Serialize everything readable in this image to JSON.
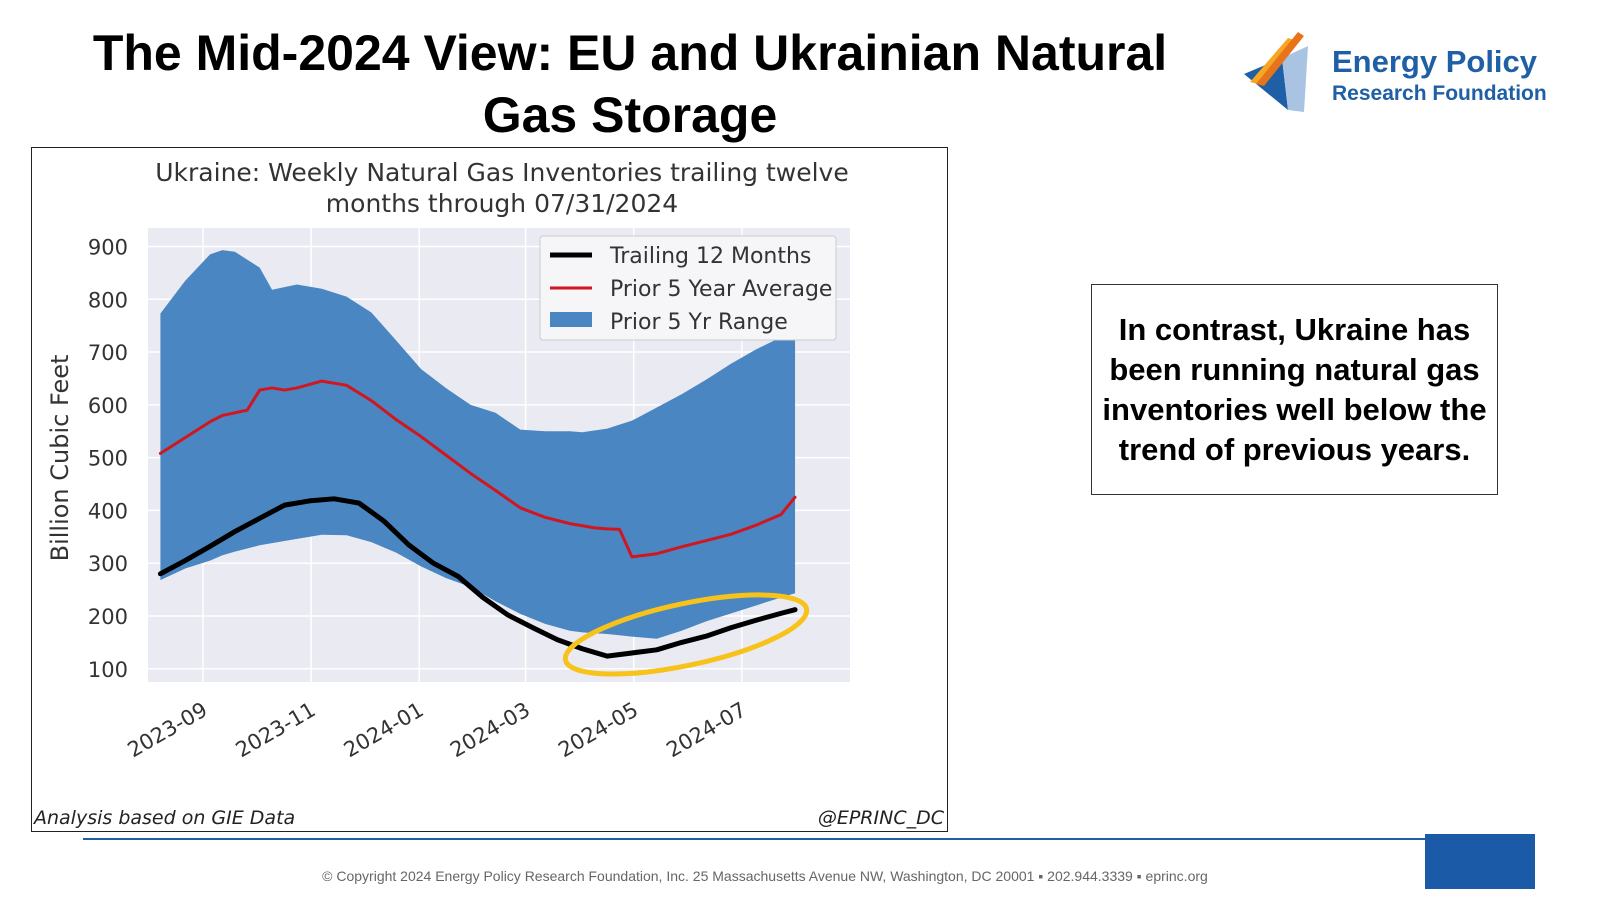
{
  "slide": {
    "title": "The Mid-2024 View: EU and Ukrainian Natural Gas Storage",
    "logo_line1": "Energy Policy",
    "logo_line2": "Research Foundation",
    "callout": "In contrast, Ukraine has been running natural gas inventories well below the trend of previous years.",
    "footer": "© Copyright 2024 Energy Policy Research Foundation, Inc. 25 Massachusetts Avenue NW, Washington, DC 20001 ▪ 202.944.3339 ▪ eprinc.org",
    "note_left": "Analysis based on GIE Data",
    "note_right": "@EPRINC_DC"
  },
  "colors": {
    "range_fill": "#4a86c2",
    "avg_line": "#d0161e",
    "trailing_line": "#000000",
    "highlight": "#f7c21a",
    "plot_bg": "#eaeaf2",
    "brand_blue": "#1f5fa6"
  },
  "chart_data": {
    "type": "area",
    "title": "Ukraine: Weekly Natural Gas Inventories trailing twelve months through 07/31/2024",
    "title_lines": [
      "Ukraine: Weekly Natural Gas Inventories trailing twelve",
      "months through 07/31/2024"
    ],
    "xlabel": "",
    "ylabel": "Billion Cubic Feet",
    "x_axis": "date",
    "x_ticks": [
      "2023-09",
      "2023-11",
      "2024-01",
      "2024-03",
      "2024-05",
      "2024-07"
    ],
    "xlim": [
      "2023-08-01",
      "2024-08-31"
    ],
    "y_ticks": [
      100,
      200,
      300,
      400,
      500,
      600,
      700,
      800,
      900
    ],
    "ylim": [
      75,
      935
    ],
    "grid": true,
    "legend_position": "top-right",
    "legend": [
      "Trailing 12 Months",
      "Prior 5 Year Average",
      "Prior 5 Yr Range"
    ],
    "series": [
      {
        "name": "Prior 5 Yr Range",
        "kind": "band",
        "x": [
          "2023-08-08",
          "2023-08-22",
          "2023-09-05",
          "2023-09-12",
          "2023-09-19",
          "2023-10-03",
          "2023-10-10",
          "2023-10-24",
          "2023-11-07",
          "2023-11-21",
          "2023-12-05",
          "2023-12-19",
          "2024-01-02",
          "2024-01-16",
          "2024-01-30",
          "2024-02-13",
          "2024-02-27",
          "2024-03-12",
          "2024-03-26",
          "2024-04-02",
          "2024-04-16",
          "2024-04-30",
          "2024-05-14",
          "2024-05-28",
          "2024-06-11",
          "2024-06-25",
          "2024-07-09",
          "2024-07-23",
          "2024-07-31"
        ],
        "upper": [
          773,
          835,
          885,
          893,
          890,
          860,
          818,
          828,
          820,
          805,
          775,
          722,
          668,
          632,
          600,
          585,
          553,
          550,
          550,
          548,
          555,
          570,
          595,
          620,
          648,
          678,
          705,
          728,
          740
        ],
        "lower": [
          268,
          290,
          305,
          315,
          322,
          334,
          338,
          346,
          354,
          353,
          340,
          320,
          294,
          272,
          255,
          228,
          204,
          185,
          172,
          169,
          166,
          161,
          157,
          172,
          190,
          205,
          220,
          235,
          243
        ]
      },
      {
        "name": "Prior 5 Year Average",
        "kind": "line",
        "x": [
          "2023-08-08",
          "2023-08-22",
          "2023-09-05",
          "2023-09-12",
          "2023-09-26",
          "2023-10-03",
          "2023-10-10",
          "2023-10-17",
          "2023-10-24",
          "2023-11-07",
          "2023-11-21",
          "2023-12-05",
          "2023-12-19",
          "2024-01-02",
          "2024-01-16",
          "2024-01-30",
          "2024-02-13",
          "2024-02-27",
          "2024-03-12",
          "2024-03-26",
          "2024-04-09",
          "2024-04-16",
          "2024-04-23",
          "2024-04-30",
          "2024-05-14",
          "2024-05-28",
          "2024-06-11",
          "2024-06-25",
          "2024-07-09",
          "2024-07-23",
          "2024-07-31"
        ],
        "values": [
          508,
          538,
          568,
          580,
          590,
          628,
          632,
          628,
          632,
          645,
          637,
          608,
          572,
          540,
          505,
          470,
          438,
          405,
          387,
          375,
          367,
          365,
          364,
          312,
          318,
          331,
          343,
          355,
          372,
          392,
          425
        ]
      },
      {
        "name": "Trailing 12 Months",
        "kind": "line",
        "x": [
          "2023-08-08",
          "2023-08-22",
          "2023-09-05",
          "2023-09-19",
          "2023-10-03",
          "2023-10-17",
          "2023-10-31",
          "2023-11-14",
          "2023-11-28",
          "2023-12-12",
          "2023-12-26",
          "2024-01-09",
          "2024-01-23",
          "2024-02-06",
          "2024-02-20",
          "2024-03-05",
          "2024-03-19",
          "2024-04-02",
          "2024-04-16",
          "2024-04-30",
          "2024-05-14",
          "2024-05-28",
          "2024-06-11",
          "2024-06-25",
          "2024-07-09",
          "2024-07-23",
          "2024-07-31"
        ],
        "values": [
          280,
          305,
          332,
          360,
          385,
          410,
          418,
          422,
          414,
          380,
          335,
          300,
          275,
          235,
          202,
          178,
          155,
          138,
          124,
          130,
          136,
          150,
          162,
          178,
          192,
          205,
          212
        ]
      }
    ],
    "highlight": {
      "shape": "ellipse",
      "color": "#f7c21a",
      "x_range": [
        "2024-03-22",
        "2024-08-08"
      ],
      "y_range": [
        95,
        235
      ]
    }
  }
}
